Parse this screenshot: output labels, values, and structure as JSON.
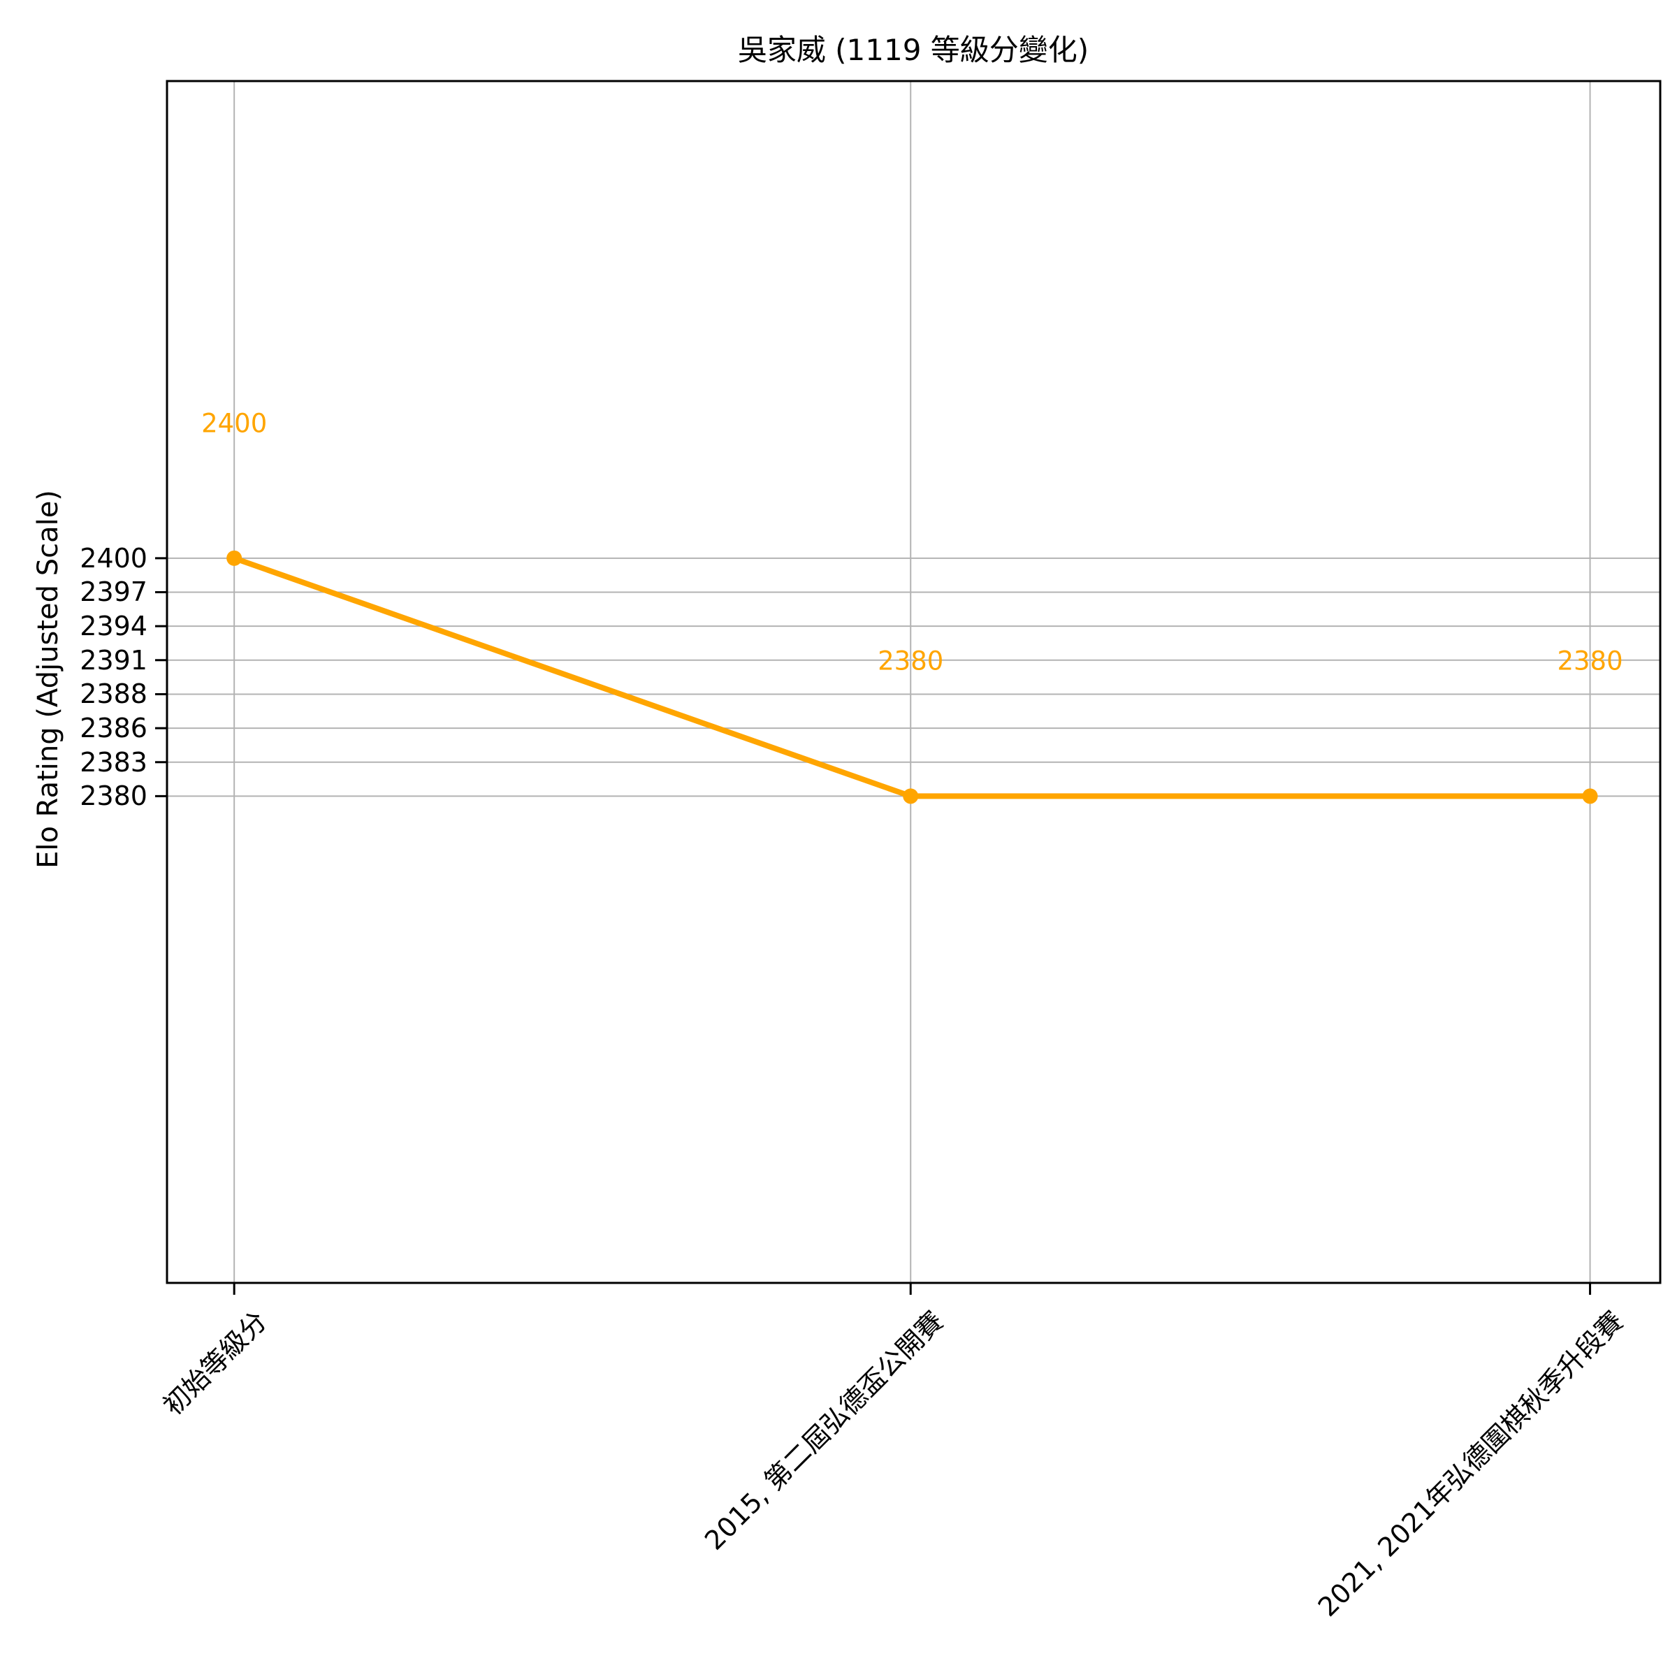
{
  "chart_data": {
    "type": "line",
    "title": "吳家威 (1119 等級分變化)",
    "ylabel": "Elo Rating (Adjusted Scale)",
    "xlabel": "",
    "categories": [
      "初始等級分",
      "2015, 第二屆弘德盃公開賽",
      "2021, 2021年弘德圍棋秋季升段賽"
    ],
    "series": [
      {
        "name": "Elo Rating",
        "values": [
          2400,
          2380,
          2380
        ]
      }
    ],
    "point_labels": [
      "2400",
      "2380",
      "2380"
    ],
    "y_ticks": [
      2400,
      2397,
      2394,
      2391,
      2388,
      2386,
      2383,
      2380
    ],
    "grid": true,
    "legend": "none",
    "x_tick_rotation": 45,
    "colors": {
      "line": "#FFA500",
      "point_label": "#FFA500",
      "grid": "#b3b3b3",
      "axis": "#000000",
      "background": "#ffffff"
    }
  }
}
